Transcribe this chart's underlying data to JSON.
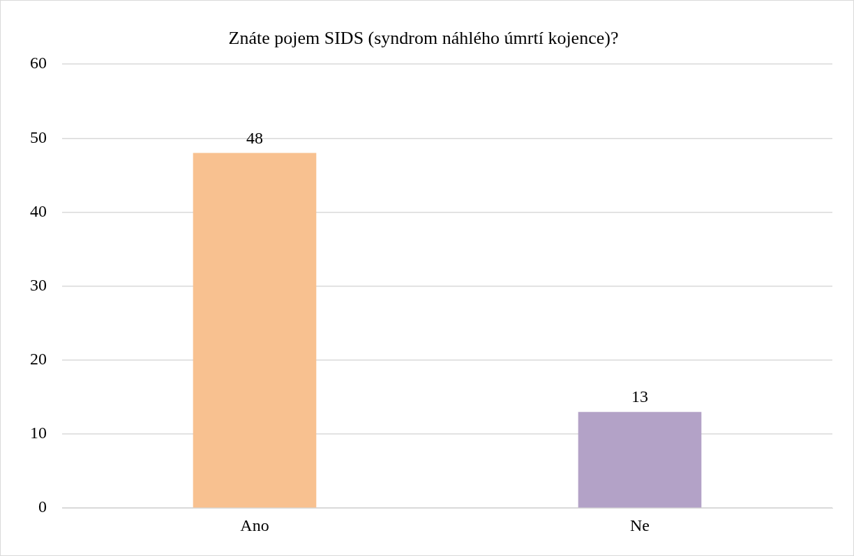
{
  "chart_data": {
    "type": "bar",
    "title": "Znáte pojem SIDS (syndrom náhlého úmrtí kojence)?",
    "categories": [
      "Ano",
      "Ne"
    ],
    "values": [
      48,
      13
    ],
    "colors": [
      "#f8c190",
      "#b3a2c7"
    ],
    "ylim": [
      0,
      60
    ],
    "yticks": [
      0,
      10,
      20,
      30,
      40,
      50,
      60
    ],
    "grid": "y",
    "legend": false,
    "data_labels": true
  }
}
